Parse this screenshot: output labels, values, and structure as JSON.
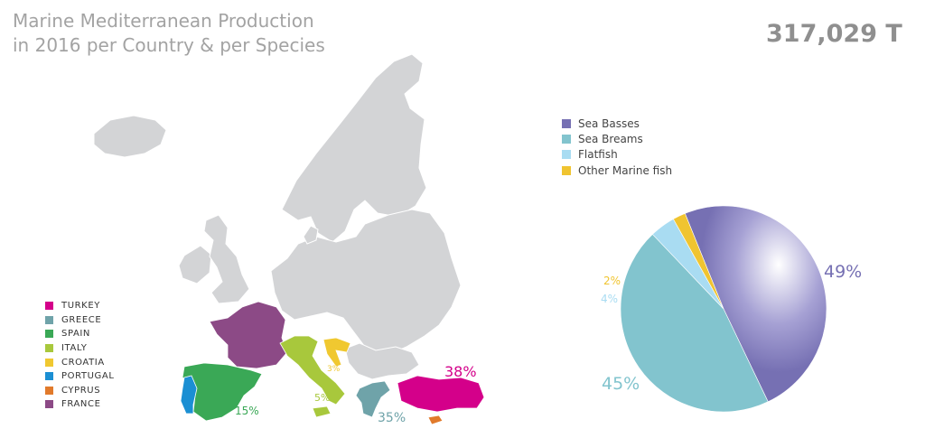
{
  "title_line1": "Marine Mediterranean Production",
  "title_line2": "in 2016 per Country & per Species",
  "total": "317,029 T",
  "chart_data": [
    {
      "type": "pie",
      "title": "",
      "legend_position": "top-left",
      "series": [
        {
          "name": "Sea Basses",
          "value": 49,
          "label": "49%",
          "color": "#7670b3"
        },
        {
          "name": "Sea Breams",
          "value": 45,
          "label": "45%",
          "color": "#82c4ce"
        },
        {
          "name": "Flatfish",
          "value": 4,
          "label": "4%",
          "color": "#a9dcf2"
        },
        {
          "name": "Other Marine fish",
          "value": 2,
          "label": "2%",
          "color": "#f0c430"
        }
      ]
    },
    {
      "type": "map",
      "title": "",
      "legend_position": "bottom-left",
      "series": [
        {
          "name": "TURKEY",
          "color": "#d4008a",
          "label": "38%"
        },
        {
          "name": "GREECE",
          "color": "#6fa3a9",
          "label": "35%"
        },
        {
          "name": "SPAIN",
          "color": "#3aa856",
          "label": "15%"
        },
        {
          "name": "ITALY",
          "color": "#a8c83c",
          "label": "5%"
        },
        {
          "name": "CROATIA",
          "color": "#f0c830",
          "label": "3%"
        },
        {
          "name": "PORTUGAL",
          "color": "#1b8fd3",
          "label": ""
        },
        {
          "name": "CYPRUS",
          "color": "#e17a2b",
          "label": ""
        },
        {
          "name": "FRANCE",
          "color": "#8c4a86",
          "label": ""
        }
      ]
    }
  ],
  "map_base_color": "#d3d4d6"
}
